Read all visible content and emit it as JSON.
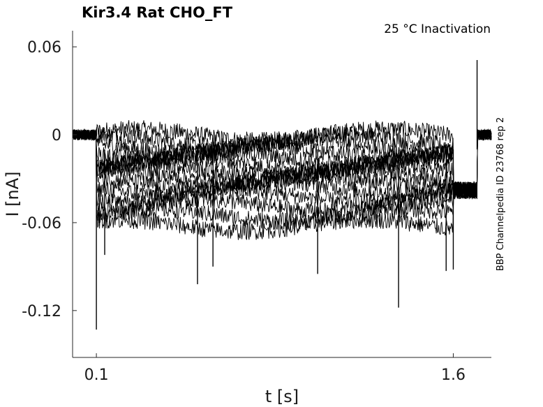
{
  "chart_data": {
    "type": "line",
    "title": "Kir3.4  Rat  CHO_FT",
    "subtitle": "25 °C  Inactivation",
    "side_note": "BBP Channelpedia ID 23768 rep 2",
    "xlabel": "t [s]",
    "ylabel": "I [nA]",
    "xlim": [
      0.0,
      1.76
    ],
    "ylim": [
      -0.152,
      0.071
    ],
    "xticks": [
      0.1,
      1.6
    ],
    "xtick_labels": [
      "0.1",
      "1.6"
    ],
    "yticks": [
      0.06,
      0,
      -0.06,
      -0.12
    ],
    "ytick_labels": [
      "0.06",
      "0",
      "-0.06",
      "-0.12"
    ],
    "grid": false,
    "legend": "none",
    "line_color": "#000000",
    "pulse": {
      "start": 0.1,
      "end": 1.6,
      "tail_end": 1.7
    },
    "baseline_current": 0.0,
    "tail_current": -0.038,
    "series_levels": [
      0.0,
      -0.004,
      -0.008,
      -0.012,
      -0.016,
      -0.02,
      -0.024,
      -0.028,
      -0.032,
      -0.036,
      -0.042,
      -0.048,
      -0.055,
      -0.062
    ],
    "noise_amplitude": 0.006,
    "spikes": [
      {
        "t": 0.1,
        "i": -0.133
      },
      {
        "t": 0.135,
        "i": -0.082
      },
      {
        "t": 0.525,
        "i": -0.102
      },
      {
        "t": 0.59,
        "i": -0.09
      },
      {
        "t": 1.03,
        "i": -0.095
      },
      {
        "t": 1.37,
        "i": -0.118
      },
      {
        "t": 1.57,
        "i": -0.093
      },
      {
        "t": 1.6,
        "i": -0.092
      },
      {
        "t": 1.7,
        "i": 0.051
      }
    ]
  }
}
